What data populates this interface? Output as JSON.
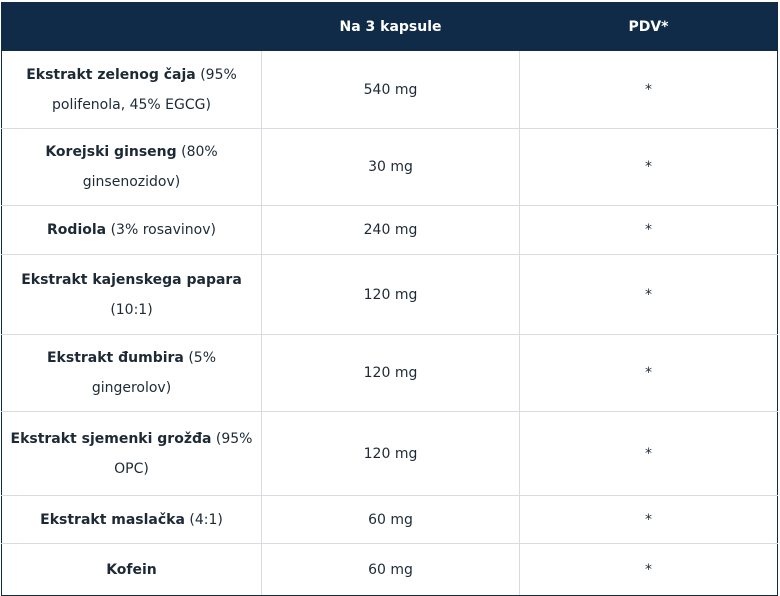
{
  "table": {
    "header": {
      "ingredient": "",
      "amount": "Na 3 kapsule",
      "pdv": "PDV*"
    },
    "rows": [
      {
        "name": "Ekstrakt zelenog čaja",
        "detail": " (95% polifenola, 45% EGCG)",
        "amount": "540 mg",
        "pdv": "*"
      },
      {
        "name": "Korejski ginseng",
        "detail": " (80% ginsenozidov)",
        "amount": "30 mg",
        "pdv": "*"
      },
      {
        "name": "Rodiola",
        "detail": " (3% rosavinov)",
        "amount": "240 mg",
        "pdv": "*"
      },
      {
        "name": "Ekstrakt kajenskega papara",
        "detail": " (10:1)",
        "amount": "120 mg",
        "pdv": "*"
      },
      {
        "name": "Ekstrakt đumbira",
        "detail": " (5% gingerolov)",
        "amount": "120 mg",
        "pdv": "*"
      },
      {
        "name": "Ekstrakt sjemenki grožđa",
        "detail": " (95% OPC)",
        "amount": "120 mg",
        "pdv": "*"
      },
      {
        "name": "Ekstrakt maslačka",
        "detail": " (4:1)",
        "amount": "60 mg",
        "pdv": "*"
      },
      {
        "name": "Kofein",
        "detail": "",
        "amount": "60 mg",
        "pdv": "*"
      }
    ]
  }
}
